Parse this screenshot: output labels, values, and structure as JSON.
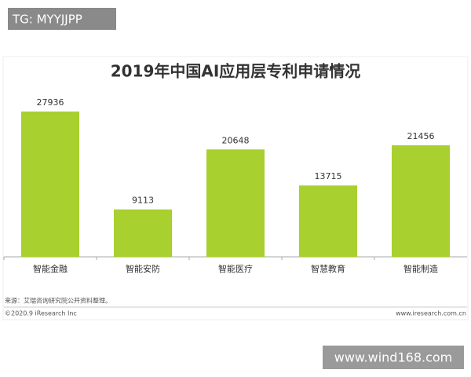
{
  "watermark_top": "TG: MYYJJPP",
  "chart_data": {
    "type": "bar",
    "title": "2019年中国AI应用层专利申请情况",
    "categories": [
      "智能金融",
      "智能安防",
      "智能医疗",
      "智慧教育",
      "智能制造"
    ],
    "values": [
      27936,
      9113,
      20648,
      13715,
      21456
    ],
    "color": "#a8d02e",
    "source": "来源：艾瑞咨询研究院公开资料整理。",
    "copyright": "©2020.9 iResearch Inc",
    "website": "www.iresearch.com.cn"
  },
  "watermark_bottom": "www.wind168.com"
}
